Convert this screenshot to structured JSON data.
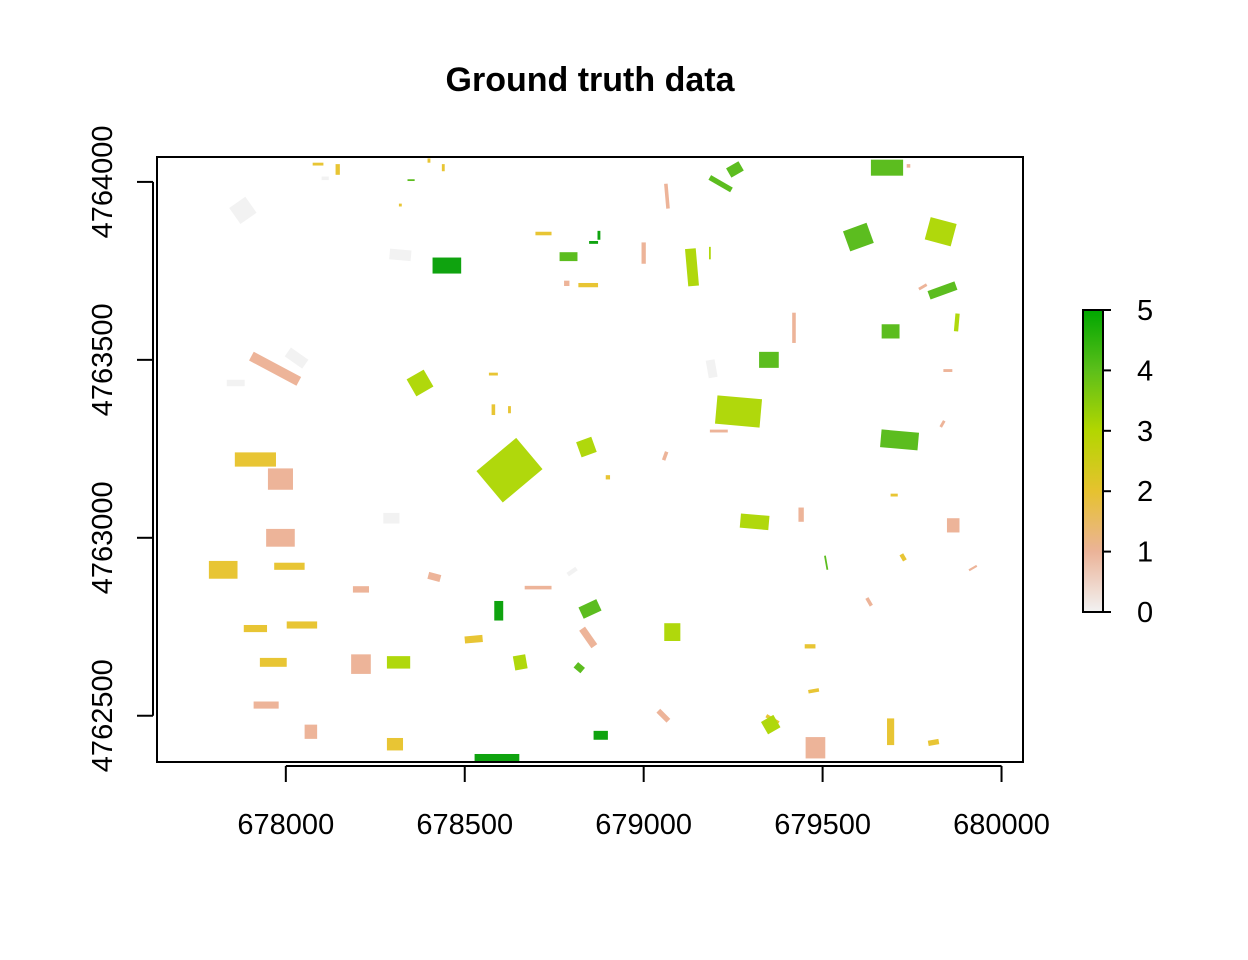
{
  "chart_data": {
    "type": "map",
    "title": "Ground truth data",
    "xlabel": "",
    "ylabel": "",
    "xlim": [
      677640,
      680060
    ],
    "ylim": [
      4762370,
      4764070
    ],
    "x_ticks": [
      678000,
      678500,
      679000,
      679500,
      680000
    ],
    "y_ticks": [
      4762500,
      4763000,
      4763500,
      4764000
    ],
    "x_tick_labels": [
      "678000",
      "678500",
      "679000",
      "679500",
      "680000"
    ],
    "y_tick_labels": [
      "4762500",
      "4763000",
      "4763500",
      "4764000"
    ],
    "legend": {
      "position": "right",
      "min": 0,
      "max": 5,
      "tick_labels": [
        "0",
        "1",
        "2",
        "3",
        "4",
        "5"
      ],
      "colors": [
        "#f2f2f2",
        "#ebb398",
        "#e6c22f",
        "#b3d600",
        "#5cbf1a",
        "#00a600"
      ]
    },
    "classes": {
      "0": "#f2f2f2",
      "1": "#edb499",
      "2": "#e8c534",
      "3": "#b0d80c",
      "4": "#5cbd1f",
      "5": "#0fa30f"
    },
    "parcels": [
      {
        "class": 0,
        "x": 677880,
        "y": 4763920,
        "w": 55,
        "h": 55,
        "rot": -35
      },
      {
        "class": 0,
        "x": 678320,
        "y": 4763795,
        "w": 60,
        "h": 30,
        "rot": 5
      },
      {
        "class": 0,
        "x": 678030,
        "y": 4763505,
        "w": 30,
        "h": 60,
        "rot": -55
      },
      {
        "class": 0,
        "x": 677860,
        "y": 4763435,
        "w": 50,
        "h": 18,
        "rot": 0
      },
      {
        "class": 0,
        "x": 678295,
        "y": 4763055,
        "w": 45,
        "h": 30,
        "rot": 0
      },
      {
        "class": 0,
        "x": 679190,
        "y": 4763475,
        "w": 25,
        "h": 50,
        "rot": -10
      },
      {
        "class": 0,
        "x": 678800,
        "y": 4762905,
        "w": 30,
        "h": 12,
        "rot": -35
      },
      {
        "class": 0,
        "x": 678110,
        "y": 4764010,
        "w": 20,
        "h": 10,
        "rot": 0
      },
      {
        "class": 1,
        "x": 677970,
        "y": 4763475,
        "w": 150,
        "h": 28,
        "rot": 28
      },
      {
        "class": 1,
        "x": 677985,
        "y": 4763165,
        "w": 70,
        "h": 60,
        "rot": 0
      },
      {
        "class": 1,
        "x": 677985,
        "y": 4763000,
        "w": 80,
        "h": 50,
        "rot": 0
      },
      {
        "class": 1,
        "x": 678210,
        "y": 4762855,
        "w": 45,
        "h": 18,
        "rot": 0
      },
      {
        "class": 1,
        "x": 678415,
        "y": 4762890,
        "w": 35,
        "h": 20,
        "rot": 15
      },
      {
        "class": 1,
        "x": 678210,
        "y": 4762645,
        "w": 55,
        "h": 55,
        "rot": 0
      },
      {
        "class": 1,
        "x": 677945,
        "y": 4762530,
        "w": 70,
        "h": 20,
        "rot": 0
      },
      {
        "class": 1,
        "x": 678070,
        "y": 4762455,
        "w": 35,
        "h": 40,
        "rot": 0
      },
      {
        "class": 1,
        "x": 678705,
        "y": 4762860,
        "w": 75,
        "h": 10,
        "rot": 0
      },
      {
        "class": 1,
        "x": 678845,
        "y": 4762720,
        "w": 20,
        "h": 60,
        "rot": -35
      },
      {
        "class": 1,
        "x": 679000,
        "y": 4763800,
        "w": 12,
        "h": 60,
        "rot": 0
      },
      {
        "class": 1,
        "x": 679065,
        "y": 4763960,
        "w": 10,
        "h": 70,
        "rot": -5
      },
      {
        "class": 1,
        "x": 679420,
        "y": 4763590,
        "w": 10,
        "h": 85,
        "rot": 0
      },
      {
        "class": 1,
        "x": 679440,
        "y": 4763065,
        "w": 15,
        "h": 40,
        "rot": 0
      },
      {
        "class": 1,
        "x": 679060,
        "y": 4763230,
        "w": 10,
        "h": 25,
        "rot": 20
      },
      {
        "class": 1,
        "x": 679630,
        "y": 4762820,
        "w": 10,
        "h": 25,
        "rot": -30
      },
      {
        "class": 1,
        "x": 679055,
        "y": 4762500,
        "w": 15,
        "h": 40,
        "rot": -45
      },
      {
        "class": 1,
        "x": 679480,
        "y": 4762410,
        "w": 55,
        "h": 60,
        "rot": 0
      },
      {
        "class": 1,
        "x": 679865,
        "y": 4763035,
        "w": 35,
        "h": 40,
        "rot": 0
      },
      {
        "class": 1,
        "x": 679850,
        "y": 4763470,
        "w": 25,
        "h": 8,
        "rot": 0
      },
      {
        "class": 1,
        "x": 679835,
        "y": 4763320,
        "w": 8,
        "h": 20,
        "rot": 30
      },
      {
        "class": 1,
        "x": 679920,
        "y": 4762915,
        "w": 25,
        "h": 6,
        "rot": -30
      },
      {
        "class": 1,
        "x": 679780,
        "y": 4763705,
        "w": 25,
        "h": 8,
        "rot": -30
      },
      {
        "class": 1,
        "x": 678785,
        "y": 4763715,
        "w": 15,
        "h": 15,
        "rot": 0
      },
      {
        "class": 1,
        "x": 679210,
        "y": 4763300,
        "w": 50,
        "h": 8,
        "rot": 0
      },
      {
        "class": 1,
        "x": 679740,
        "y": 4764045,
        "w": 10,
        "h": 10,
        "rot": 0
      },
      {
        "class": 2,
        "x": 677915,
        "y": 4763220,
        "w": 115,
        "h": 40,
        "rot": 0
      },
      {
        "class": 2,
        "x": 677825,
        "y": 4762910,
        "w": 80,
        "h": 50,
        "rot": 0
      },
      {
        "class": 2,
        "x": 678010,
        "y": 4762920,
        "w": 85,
        "h": 20,
        "rot": 0
      },
      {
        "class": 2,
        "x": 677915,
        "y": 4762745,
        "w": 65,
        "h": 20,
        "rot": 0
      },
      {
        "class": 2,
        "x": 678045,
        "y": 4762755,
        "w": 85,
        "h": 20,
        "rot": 0
      },
      {
        "class": 2,
        "x": 677965,
        "y": 4762650,
        "w": 75,
        "h": 25,
        "rot": 0
      },
      {
        "class": 2,
        "x": 678305,
        "y": 4762420,
        "w": 45,
        "h": 35,
        "rot": 0
      },
      {
        "class": 2,
        "x": 678525,
        "y": 4762715,
        "w": 50,
        "h": 20,
        "rot": -5
      },
      {
        "class": 2,
        "x": 678845,
        "y": 4763710,
        "w": 55,
        "h": 12,
        "rot": 0
      },
      {
        "class": 2,
        "x": 678720,
        "y": 4763855,
        "w": 45,
        "h": 10,
        "rot": 0
      },
      {
        "class": 2,
        "x": 679690,
        "y": 4762455,
        "w": 20,
        "h": 75,
        "rot": 0
      },
      {
        "class": 2,
        "x": 679810,
        "y": 4762425,
        "w": 30,
        "h": 15,
        "rot": -10
      },
      {
        "class": 2,
        "x": 679360,
        "y": 4762490,
        "w": 40,
        "h": 10,
        "rot": 30
      },
      {
        "class": 2,
        "x": 679465,
        "y": 4762695,
        "w": 30,
        "h": 12,
        "rot": 0
      },
      {
        "class": 2,
        "x": 679475,
        "y": 4762570,
        "w": 30,
        "h": 10,
        "rot": -10
      },
      {
        "class": 2,
        "x": 679700,
        "y": 4763120,
        "w": 20,
        "h": 8,
        "rot": 0
      },
      {
        "class": 2,
        "x": 679725,
        "y": 4762945,
        "w": 12,
        "h": 20,
        "rot": -30
      },
      {
        "class": 2,
        "x": 678900,
        "y": 4763170,
        "w": 12,
        "h": 12,
        "rot": 0
      },
      {
        "class": 2,
        "x": 678580,
        "y": 4763360,
        "w": 10,
        "h": 30,
        "rot": 0
      },
      {
        "class": 2,
        "x": 678625,
        "y": 4763360,
        "w": 8,
        "h": 20,
        "rot": 0
      },
      {
        "class": 2,
        "x": 678580,
        "y": 4763460,
        "w": 25,
        "h": 8,
        "rot": 0
      },
      {
        "class": 2,
        "x": 678320,
        "y": 4763935,
        "w": 8,
        "h": 8,
        "rot": 0
      },
      {
        "class": 2,
        "x": 678145,
        "y": 4764035,
        "w": 12,
        "h": 30,
        "rot": 0
      },
      {
        "class": 2,
        "x": 678090,
        "y": 4764050,
        "w": 30,
        "h": 8,
        "rot": 0
      },
      {
        "class": 2,
        "x": 678440,
        "y": 4764040,
        "w": 8,
        "h": 20,
        "rot": 0
      },
      {
        "class": 2,
        "x": 678400,
        "y": 4764060,
        "w": 8,
        "h": 12,
        "rot": 0
      },
      {
        "class": 3,
        "x": 678625,
        "y": 4763190,
        "w": 145,
        "h": 115,
        "rot": -40
      },
      {
        "class": 3,
        "x": 679265,
        "y": 4763355,
        "w": 125,
        "h": 80,
        "rot": 5
      },
      {
        "class": 3,
        "x": 678375,
        "y": 4763435,
        "w": 55,
        "h": 55,
        "rot": -30
      },
      {
        "class": 3,
        "x": 679135,
        "y": 4763760,
        "w": 30,
        "h": 105,
        "rot": -5
      },
      {
        "class": 3,
        "x": 678315,
        "y": 4762650,
        "w": 65,
        "h": 35,
        "rot": 0
      },
      {
        "class": 3,
        "x": 678655,
        "y": 4762650,
        "w": 35,
        "h": 40,
        "rot": -10
      },
      {
        "class": 3,
        "x": 678840,
        "y": 4763255,
        "w": 45,
        "h": 45,
        "rot": -20
      },
      {
        "class": 3,
        "x": 679310,
        "y": 4763045,
        "w": 80,
        "h": 40,
        "rot": 5
      },
      {
        "class": 3,
        "x": 679080,
        "y": 4762735,
        "w": 45,
        "h": 50,
        "rot": 0
      },
      {
        "class": 3,
        "x": 679355,
        "y": 4762475,
        "w": 40,
        "h": 40,
        "rot": -30
      },
      {
        "class": 3,
        "x": 679830,
        "y": 4763860,
        "w": 75,
        "h": 65,
        "rot": 15
      },
      {
        "class": 3,
        "x": 679875,
        "y": 4763605,
        "w": 12,
        "h": 50,
        "rot": 5
      },
      {
        "class": 3,
        "x": 679185,
        "y": 4763800,
        "w": 5,
        "h": 35,
        "rot": 0
      },
      {
        "class": 3,
        "x": 678435,
        "y": 4763760,
        "w": 5,
        "h": 10,
        "rot": 0
      },
      {
        "class": 4,
        "x": 679600,
        "y": 4763845,
        "w": 70,
        "h": 60,
        "rot": -20
      },
      {
        "class": 4,
        "x": 679835,
        "y": 4763695,
        "w": 80,
        "h": 25,
        "rot": -20
      },
      {
        "class": 4,
        "x": 679680,
        "y": 4764040,
        "w": 90,
        "h": 45,
        "rot": 0
      },
      {
        "class": 4,
        "x": 679255,
        "y": 4764035,
        "w": 40,
        "h": 30,
        "rot": -30
      },
      {
        "class": 4,
        "x": 679215,
        "y": 4763995,
        "w": 70,
        "h": 15,
        "rot": 30
      },
      {
        "class": 4,
        "x": 679350,
        "y": 4763500,
        "w": 55,
        "h": 45,
        "rot": 0
      },
      {
        "class": 4,
        "x": 679690,
        "y": 4763580,
        "w": 50,
        "h": 40,
        "rot": 0
      },
      {
        "class": 4,
        "x": 679715,
        "y": 4763275,
        "w": 105,
        "h": 50,
        "rot": 5
      },
      {
        "class": 4,
        "x": 678850,
        "y": 4762800,
        "w": 55,
        "h": 35,
        "rot": -25
      },
      {
        "class": 4,
        "x": 678820,
        "y": 4762635,
        "w": 25,
        "h": 20,
        "rot": 40
      },
      {
        "class": 4,
        "x": 679510,
        "y": 4762930,
        "w": 5,
        "h": 40,
        "rot": -10
      },
      {
        "class": 4,
        "x": 678350,
        "y": 4764005,
        "w": 20,
        "h": 5,
        "rot": 0
      },
      {
        "class": 4,
        "x": 678790,
        "y": 4763790,
        "w": 50,
        "h": 25,
        "rot": 0
      },
      {
        "class": 5,
        "x": 678450,
        "y": 4763765,
        "w": 80,
        "h": 45,
        "rot": 0
      },
      {
        "class": 5,
        "x": 678595,
        "y": 4762795,
        "w": 25,
        "h": 55,
        "rot": 0
      },
      {
        "class": 5,
        "x": 678880,
        "y": 4762445,
        "w": 40,
        "h": 25,
        "rot": 0
      },
      {
        "class": 5,
        "x": 678590,
        "y": 4762370,
        "w": 125,
        "h": 45,
        "rot": 0
      },
      {
        "class": 5,
        "x": 678875,
        "y": 4763850,
        "w": 8,
        "h": 25,
        "rot": 0
      },
      {
        "class": 5,
        "x": 678860,
        "y": 4763830,
        "w": 25,
        "h": 8,
        "rot": 0
      }
    ]
  }
}
